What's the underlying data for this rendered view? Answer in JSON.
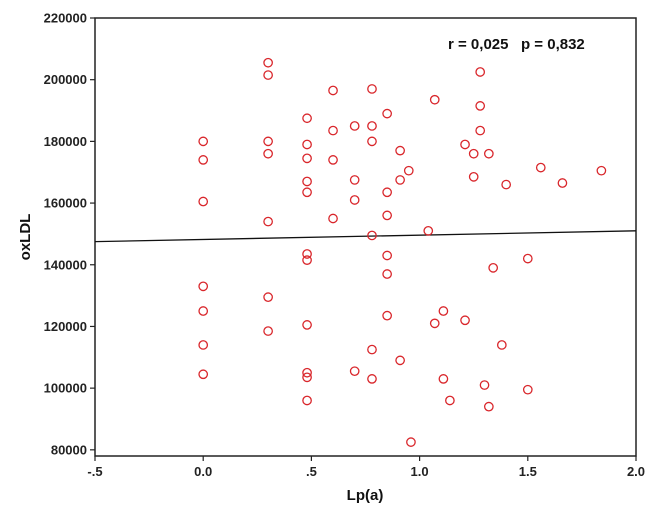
{
  "chart_data": {
    "type": "scatter",
    "xlabel": "Lp(a)",
    "ylabel": "oxLDL",
    "xlim": [
      -0.5,
      2.0
    ],
    "ylim": [
      78000,
      220000
    ],
    "x_ticks": [
      -0.5,
      0.0,
      0.5,
      1.0,
      1.5,
      2.0
    ],
    "x_tick_labels": [
      "-.5",
      "0.0",
      ".5",
      "1.0",
      "1.5",
      "2.0"
    ],
    "y_ticks": [
      80000,
      100000,
      120000,
      140000,
      160000,
      180000,
      200000,
      220000
    ],
    "y_tick_labels": [
      "80000",
      "100000",
      "120000",
      "140000",
      "160000",
      "180000",
      "200000",
      "220000"
    ],
    "annotation": "r = 0,025   p = 0,832",
    "grid": false,
    "marker_color": "#d9262b",
    "regression_line": {
      "x": [
        -0.5,
        2.0
      ],
      "y": [
        147500,
        151000
      ]
    },
    "points": [
      {
        "x": 0.0,
        "y": 180000
      },
      {
        "x": 0.0,
        "y": 174000
      },
      {
        "x": 0.0,
        "y": 160500
      },
      {
        "x": 0.0,
        "y": 133000
      },
      {
        "x": 0.0,
        "y": 125000
      },
      {
        "x": 0.0,
        "y": 114000
      },
      {
        "x": 0.0,
        "y": 104500
      },
      {
        "x": 0.3,
        "y": 205500
      },
      {
        "x": 0.3,
        "y": 201500
      },
      {
        "x": 0.3,
        "y": 180000
      },
      {
        "x": 0.3,
        "y": 176000
      },
      {
        "x": 0.3,
        "y": 154000
      },
      {
        "x": 0.3,
        "y": 129500
      },
      {
        "x": 0.3,
        "y": 118500
      },
      {
        "x": 0.48,
        "y": 187500
      },
      {
        "x": 0.48,
        "y": 179000
      },
      {
        "x": 0.48,
        "y": 174500
      },
      {
        "x": 0.48,
        "y": 167000
      },
      {
        "x": 0.48,
        "y": 163500
      },
      {
        "x": 0.48,
        "y": 143500
      },
      {
        "x": 0.48,
        "y": 141500
      },
      {
        "x": 0.48,
        "y": 120500
      },
      {
        "x": 0.48,
        "y": 105000
      },
      {
        "x": 0.48,
        "y": 103500
      },
      {
        "x": 0.48,
        "y": 96000
      },
      {
        "x": 0.6,
        "y": 196500
      },
      {
        "x": 0.6,
        "y": 183500
      },
      {
        "x": 0.6,
        "y": 174000
      },
      {
        "x": 0.6,
        "y": 155000
      },
      {
        "x": 0.7,
        "y": 185000
      },
      {
        "x": 0.7,
        "y": 167500
      },
      {
        "x": 0.7,
        "y": 161000
      },
      {
        "x": 0.7,
        "y": 105500
      },
      {
        "x": 0.78,
        "y": 197000
      },
      {
        "x": 0.78,
        "y": 185000
      },
      {
        "x": 0.78,
        "y": 180000
      },
      {
        "x": 0.78,
        "y": 149500
      },
      {
        "x": 0.78,
        "y": 112500
      },
      {
        "x": 0.78,
        "y": 103000
      },
      {
        "x": 0.85,
        "y": 189000
      },
      {
        "x": 0.85,
        "y": 163500
      },
      {
        "x": 0.85,
        "y": 156000
      },
      {
        "x": 0.85,
        "y": 143000
      },
      {
        "x": 0.85,
        "y": 137000
      },
      {
        "x": 0.85,
        "y": 123500
      },
      {
        "x": 0.91,
        "y": 177000
      },
      {
        "x": 0.91,
        "y": 167500
      },
      {
        "x": 0.91,
        "y": 109000
      },
      {
        "x": 0.95,
        "y": 170500
      },
      {
        "x": 0.96,
        "y": 82500
      },
      {
        "x": 1.04,
        "y": 151000
      },
      {
        "x": 1.07,
        "y": 193500
      },
      {
        "x": 1.07,
        "y": 121000
      },
      {
        "x": 1.11,
        "y": 125000
      },
      {
        "x": 1.11,
        "y": 103000
      },
      {
        "x": 1.14,
        "y": 96000
      },
      {
        "x": 1.21,
        "y": 179000
      },
      {
        "x": 1.21,
        "y": 122000
      },
      {
        "x": 1.25,
        "y": 176000
      },
      {
        "x": 1.25,
        "y": 168500
      },
      {
        "x": 1.28,
        "y": 202500
      },
      {
        "x": 1.28,
        "y": 191500
      },
      {
        "x": 1.28,
        "y": 183500
      },
      {
        "x": 1.3,
        "y": 101000
      },
      {
        "x": 1.32,
        "y": 176000
      },
      {
        "x": 1.32,
        "y": 94000
      },
      {
        "x": 1.34,
        "y": 139000
      },
      {
        "x": 1.38,
        "y": 114000
      },
      {
        "x": 1.4,
        "y": 166000
      },
      {
        "x": 1.5,
        "y": 142000
      },
      {
        "x": 1.5,
        "y": 99500
      },
      {
        "x": 1.56,
        "y": 171500
      },
      {
        "x": 1.66,
        "y": 166500
      },
      {
        "x": 1.84,
        "y": 170500
      }
    ]
  }
}
